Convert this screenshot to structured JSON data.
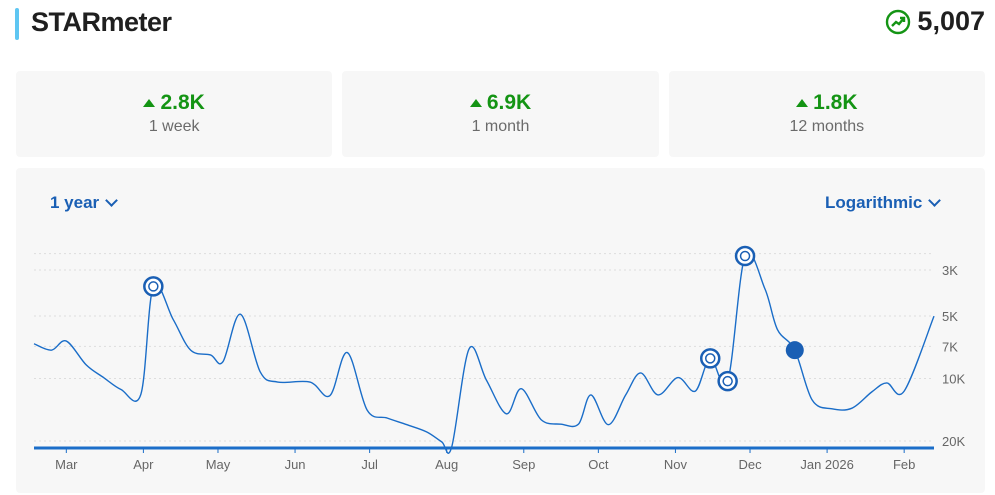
{
  "header": {
    "title": "STARmeter",
    "score": "5,007",
    "score_icon": "trending-up-icon"
  },
  "stats": [
    {
      "value": "2.8K",
      "label": "1 week",
      "direction": "up"
    },
    {
      "value": "6.9K",
      "label": "1 month",
      "direction": "up"
    },
    {
      "value": "1.8K",
      "label": "12 months",
      "direction": "up"
    }
  ],
  "controls": {
    "range": "1 year",
    "scale": "Logarithmic"
  },
  "colors": {
    "accent": "#5ec6f2",
    "up": "#149414",
    "line": "#1a6dc8",
    "control": "#1a5fb4"
  },
  "chart_data": {
    "type": "line",
    "y_scale": "log",
    "y_inverted": true,
    "ylim": [
      20000,
      2500
    ],
    "y_ticks": [
      "3K",
      "5K",
      "7K",
      "10K",
      "20K"
    ],
    "y_tick_values": [
      3000,
      5000,
      7000,
      10000,
      20000
    ],
    "x_ticks": [
      "Mar",
      "Apr",
      "May",
      "Jun",
      "Jul",
      "Aug",
      "Sep",
      "Oct",
      "Nov",
      "Dec",
      "Jan 2026",
      "Feb"
    ],
    "x_tick_dates": [
      "2025-03-01",
      "2025-04-01",
      "2025-05-01",
      "2025-06-01",
      "2025-07-01",
      "2025-08-01",
      "2025-09-01",
      "2025-10-01",
      "2025-11-01",
      "2025-12-01",
      "2026-01-01",
      "2026-02-01"
    ],
    "xlim": [
      "2025-02-16",
      "2026-02-13"
    ],
    "grid": true,
    "series": [
      {
        "points": [
          [
            "2025-02-16",
            6800
          ],
          [
            "2025-02-23",
            7300
          ],
          [
            "2025-03-01",
            6600
          ],
          [
            "2025-03-09",
            8600
          ],
          [
            "2025-03-16",
            9900
          ],
          [
            "2025-03-23",
            11300
          ],
          [
            "2025-03-31",
            11900
          ],
          [
            "2025-04-05",
            3600
          ],
          [
            "2025-04-13",
            5200
          ],
          [
            "2025-04-20",
            7300
          ],
          [
            "2025-04-28",
            7700
          ],
          [
            "2025-05-03",
            8300
          ],
          [
            "2025-05-10",
            4900
          ],
          [
            "2025-05-18",
            9300
          ],
          [
            "2025-05-25",
            10400
          ],
          [
            "2025-06-07",
            10400
          ],
          [
            "2025-06-15",
            12100
          ],
          [
            "2025-06-22",
            7500
          ],
          [
            "2025-06-30",
            14200
          ],
          [
            "2025-07-08",
            15500
          ],
          [
            "2025-07-16",
            16700
          ],
          [
            "2025-07-24",
            18100
          ],
          [
            "2025-07-30",
            20200
          ],
          [
            "2025-08-03",
            21400
          ],
          [
            "2025-08-10",
            7200
          ],
          [
            "2025-08-17",
            10200
          ],
          [
            "2025-08-25",
            14800
          ],
          [
            "2025-08-31",
            11200
          ],
          [
            "2025-09-08",
            15800
          ],
          [
            "2025-09-16",
            16600
          ],
          [
            "2025-09-23",
            16600
          ],
          [
            "2025-09-28",
            12000
          ],
          [
            "2025-10-05",
            16700
          ],
          [
            "2025-10-12",
            12000
          ],
          [
            "2025-10-18",
            9400
          ],
          [
            "2025-10-25",
            12000
          ],
          [
            "2025-11-02",
            9900
          ],
          [
            "2025-11-09",
            11500
          ],
          [
            "2025-11-15",
            8000
          ],
          [
            "2025-11-22",
            10300
          ],
          [
            "2025-11-29",
            2570
          ],
          [
            "2025-12-07",
            3700
          ],
          [
            "2025-12-12",
            5800
          ],
          [
            "2025-12-19",
            7300
          ],
          [
            "2025-12-26",
            12700
          ],
          [
            "2026-01-03",
            14000
          ],
          [
            "2026-01-11",
            13900
          ],
          [
            "2026-01-19",
            11600
          ],
          [
            "2026-01-25",
            10500
          ],
          [
            "2026-02-01",
            11500
          ],
          [
            "2026-02-13",
            5007
          ]
        ]
      }
    ],
    "markers_open": [
      "2025-04-05",
      "2025-11-15",
      "2025-11-22",
      "2025-11-29"
    ],
    "marker_filled": [
      "2025-12-19"
    ]
  }
}
